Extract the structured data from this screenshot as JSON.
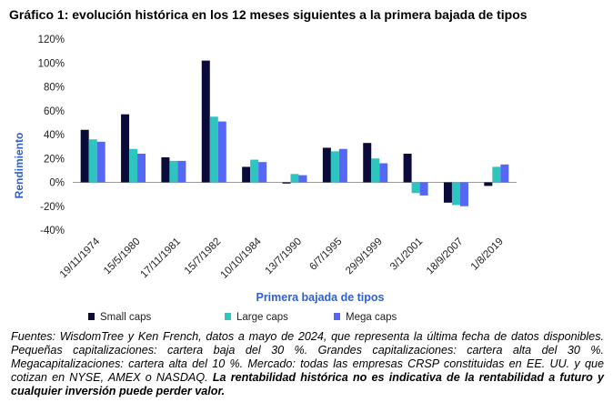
{
  "title": "Gráfico 1: evolución histórica en los 12 meses siguientes a la primera bajada de tipos",
  "colors": {
    "small": "#0b0b3b",
    "large": "#2ec4c0",
    "mega": "#5468f5",
    "axis_label": "#2f5fd0"
  },
  "chart_data": {
    "type": "bar",
    "categories": [
      "19/11/1974",
      "15/5/1980",
      "17/11/1981",
      "15/7/1982",
      "10/10/1984",
      "13/7/1990",
      "6/7/1995",
      "29/9/1999",
      "3/1/2001",
      "18/9/2007",
      "1/8/2019"
    ],
    "series": [
      {
        "name": "Small caps",
        "values": [
          44,
          57,
          21,
          102,
          13,
          -1,
          29,
          33,
          24,
          -17,
          -3
        ]
      },
      {
        "name": "Large caps",
        "values": [
          36,
          28,
          18,
          55,
          19,
          7,
          26,
          20,
          -9,
          -19,
          13
        ]
      },
      {
        "name": "Mega caps",
        "values": [
          34,
          24,
          18,
          51,
          17,
          6,
          28,
          16,
          -11,
          -20,
          15
        ]
      }
    ],
    "xlabel": "Primera bajada de tipos",
    "ylabel": "Rendimiento",
    "ylim": [
      -40,
      120
    ],
    "yticks": [
      -40,
      -20,
      0,
      20,
      40,
      60,
      80,
      100,
      120
    ],
    "ytick_labels": [
      "-40%",
      "-20%",
      "0%",
      "20%",
      "40%",
      "60%",
      "80%",
      "100%",
      "120%"
    ],
    "legend_position": "bottom",
    "grid": false
  },
  "footnote": {
    "text": "Fuentes: WisdomTree y Ken French, datos a mayo de 2024, que representa la última fecha de datos disponibles. Pequeñas capitalizaciones: cartera baja del 30 %. Grandes capitalizaciones: cartera alta del 30 %. Megacapitalizaciones: cartera alta del 10 %. Mercado: todas las empresas CRSP constituidas en EE. UU. y que cotizan en NYSE, AMEX o NASDAQ. ",
    "bold_text": "La rentabilidad histórica no es indicativa de la rentabilidad a futuro y cualquier inversión puede perder valor."
  }
}
